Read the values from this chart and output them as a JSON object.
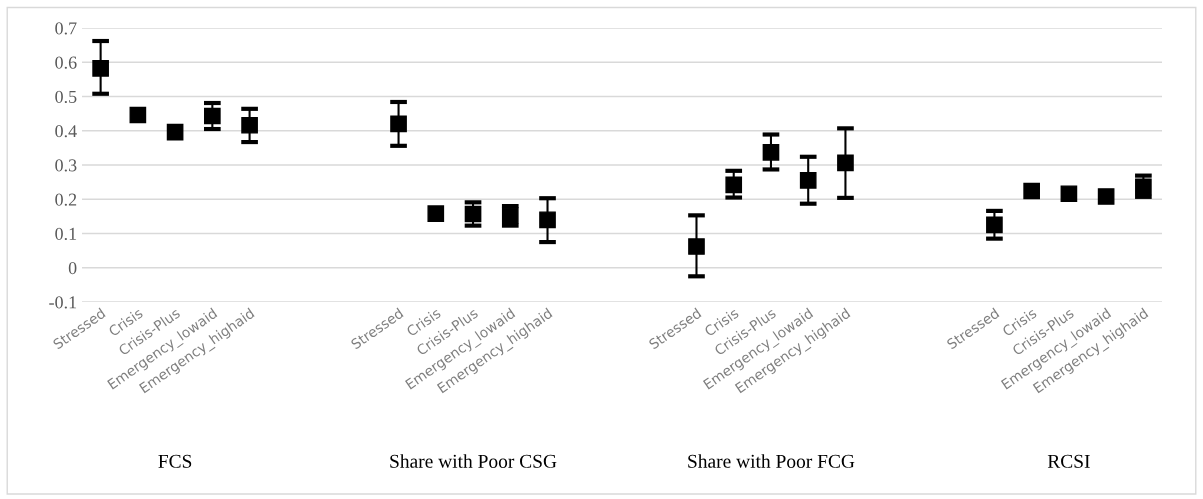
{
  "chart_data": {
    "type": "scatter",
    "categories": [
      "Stressed",
      "Crisis",
      "Crisis-Plus",
      "Emergency_lowaid",
      "Emergency_highaid",
      null,
      null,
      null,
      "Stressed",
      "Crisis",
      "Crisis-Plus",
      "Emergency_lowaid",
      "Emergency_highaid",
      null,
      null,
      null,
      "Stressed",
      "Crisis",
      "Crisis-Plus",
      "Emergency_lowaid",
      "Emergency_highaid",
      null,
      null,
      null,
      "Stressed",
      "Crisis",
      "Crisis-Plus",
      "Emergency_lowaid",
      "Emergency_highaid"
    ],
    "series": [
      {
        "color": "#000000",
        "marker": "square",
        "values": [
          0.582,
          0.446,
          0.396,
          0.443,
          0.416,
          null,
          null,
          null,
          0.42,
          0.158,
          0.157,
          0.152,
          0.14,
          null,
          null,
          null,
          0.062,
          0.242,
          0.337,
          0.255,
          0.306,
          null,
          null,
          null,
          0.125,
          0.224,
          0.216,
          0.208,
          0.236
        ],
        "errors": [
          [
            0.508,
            0.662
          ],
          null,
          null,
          [
            0.405,
            0.481
          ],
          [
            0.367,
            0.464
          ],
          null,
          null,
          null,
          [
            0.356,
            0.484
          ],
          null,
          [
            0.123,
            0.191
          ],
          [
            0.123,
            0.18
          ],
          [
            0.075,
            0.203
          ],
          null,
          null,
          null,
          [
            -0.025,
            0.153
          ],
          [
            0.205,
            0.283
          ],
          [
            0.287,
            0.389
          ],
          [
            0.187,
            0.324
          ],
          [
            0.204,
            0.407
          ],
          null,
          null,
          null,
          [
            0.085,
            0.166
          ],
          null,
          null,
          null,
          [
            0.207,
            0.269
          ]
        ]
      }
    ],
    "ylim": [
      -0.1,
      0.7
    ],
    "yticks": [
      -0.1,
      0,
      0.1,
      0.2,
      0.3,
      0.4,
      0.5,
      0.6,
      0.7
    ],
    "grid": "y",
    "legend": false,
    "annotations": [
      "FCS",
      "Share with Poor CSG",
      "Share with Poor FCG",
      "RCSI"
    ]
  }
}
